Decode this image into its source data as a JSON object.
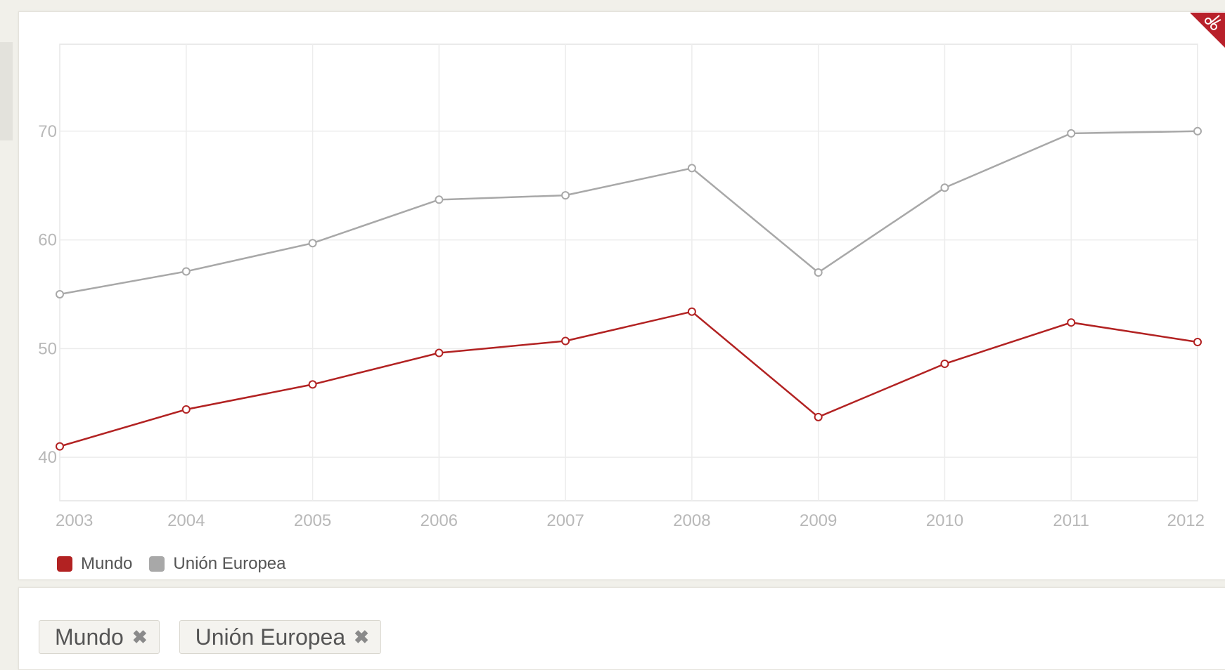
{
  "chart_data": {
    "type": "line",
    "x": [
      2003,
      2004,
      2005,
      2006,
      2007,
      2008,
      2009,
      2010,
      2011,
      2012
    ],
    "series": [
      {
        "name": "Mundo",
        "color": "#b22222",
        "values": [
          41.0,
          44.4,
          46.7,
          49.6,
          50.7,
          53.4,
          43.7,
          48.6,
          52.4,
          50.6
        ]
      },
      {
        "name": "Unión Europea",
        "color": "#a8a8a8",
        "values": [
          55.0,
          57.1,
          59.7,
          63.7,
          64.1,
          66.6,
          57.0,
          64.8,
          69.8,
          70.0
        ]
      }
    ],
    "yticks": [
      40,
      50,
      60,
      70
    ],
    "ylim": [
      36,
      78
    ],
    "xlim": [
      2003,
      2012
    ],
    "grid": true,
    "legend": "bottom-left",
    "title": "",
    "xlabel": "",
    "ylabel": ""
  },
  "filters": [
    {
      "label": "Mundo",
      "remove_icon": "close-icon"
    },
    {
      "label": "Unión Europea",
      "remove_icon": "close-icon"
    }
  ],
  "corner_icon": "scissors-icon",
  "colors": {
    "accent": "#b22222",
    "secondary": "#a8a8a8",
    "grid": "#ececec"
  }
}
